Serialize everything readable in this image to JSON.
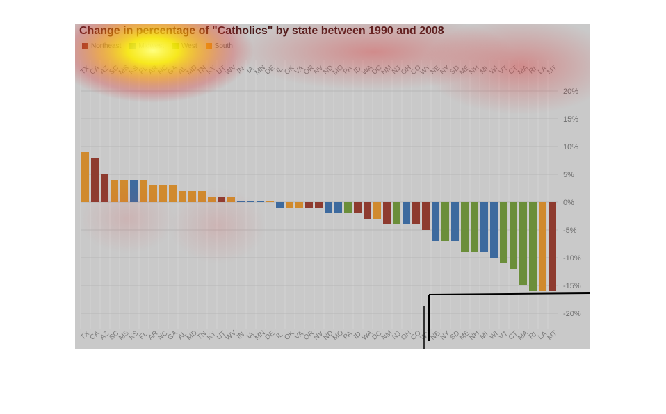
{
  "chart_data": {
    "type": "bar",
    "title": "Change in percentage of \"Catholics\" by state between 1990 and 2008",
    "legend": [
      {
        "name": "Northeast",
        "color": "#8e3b2f"
      },
      {
        "name": "Midwest",
        "color": "#3d6a9e"
      },
      {
        "name": "West",
        "color": "#6b8e3a"
      },
      {
        "name": "South",
        "color": "#d08a2e"
      }
    ],
    "legend_position": "top-left",
    "grid": true,
    "ylim": [
      -25,
      25
    ],
    "yticks": [
      "20%",
      "15%",
      "10%",
      "5%",
      "0%",
      "-5%",
      "-10%",
      "-15%",
      "-20%"
    ],
    "ytick_values": [
      20,
      15,
      10,
      5,
      0,
      -5,
      -10,
      -15,
      -20
    ],
    "categories": [
      "TX",
      "CA",
      "AZ",
      "SC",
      "MS",
      "KS",
      "FL",
      "AR",
      "NC",
      "GA",
      "AL",
      "MD",
      "TN",
      "KY",
      "UT",
      "WV",
      "IN",
      "IA",
      "MN",
      "DE",
      "IL",
      "OK",
      "VA",
      "OR",
      "NV",
      "ND",
      "MO",
      "PA",
      "ID",
      "WA",
      "DC",
      "NM",
      "NJ",
      "OH",
      "CO",
      "WY",
      "NE",
      "NY",
      "SD",
      "ME",
      "NH",
      "MI",
      "WI",
      "VT",
      "CT",
      "MA",
      "RI",
      "LA",
      "MT"
    ],
    "values": [
      9,
      8,
      5,
      4,
      4,
      4,
      4,
      3,
      3,
      3,
      2,
      2,
      2,
      1,
      1,
      1,
      0.2,
      0.2,
      0.2,
      0.2,
      -1,
      -1,
      -1,
      -1,
      -1,
      -2,
      -2,
      -2,
      -2,
      -3,
      -3,
      -4,
      -4,
      -4,
      -4,
      -5,
      -7,
      -7,
      -7,
      -9,
      -9,
      -9,
      -10,
      -11,
      -12,
      -15,
      -16,
      -16,
      -16
    ],
    "colors": [
      "#d08a2e",
      "#8e3b2f",
      "#8e3b2f",
      "#d08a2e",
      "#d08a2e",
      "#3d6a9e",
      "#d08a2e",
      "#d08a2e",
      "#d08a2e",
      "#d08a2e",
      "#d08a2e",
      "#d08a2e",
      "#d08a2e",
      "#d08a2e",
      "#8e3b2f",
      "#d08a2e",
      "#3d6a9e",
      "#3d6a9e",
      "#3d6a9e",
      "#d08a2e",
      "#3d6a9e",
      "#d08a2e",
      "#d08a2e",
      "#8e3b2f",
      "#8e3b2f",
      "#3d6a9e",
      "#3d6a9e",
      "#6b8e3a",
      "#8e3b2f",
      "#8e3b2f",
      "#d08a2e",
      "#8e3b2f",
      "#6b8e3a",
      "#3d6a9e",
      "#8e3b2f",
      "#8e3b2f",
      "#3d6a9e",
      "#6b8e3a",
      "#3d6a9e",
      "#6b8e3a",
      "#6b8e3a",
      "#3d6a9e",
      "#3d6a9e",
      "#6b8e3a",
      "#6b8e3a",
      "#6b8e3a",
      "#6b8e3a",
      "#d08a2e",
      "#8e3b2f"
    ]
  }
}
